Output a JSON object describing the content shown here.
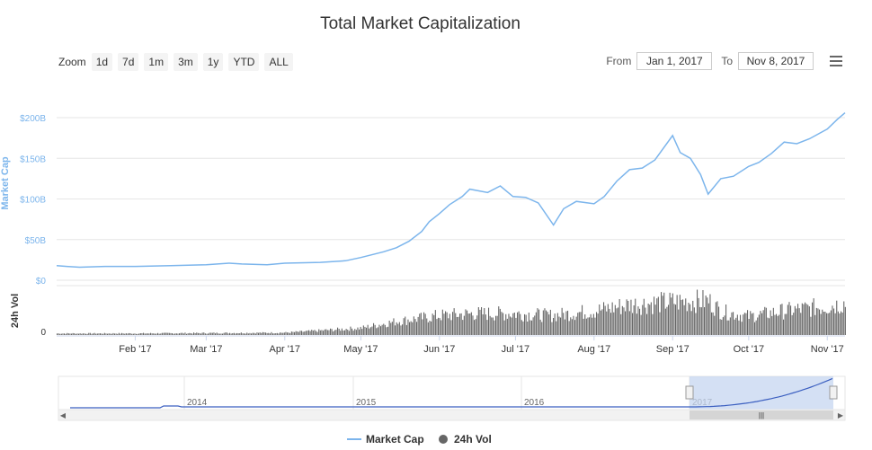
{
  "title": "Total Market Capitalization",
  "zoom": {
    "label": "Zoom",
    "buttons": [
      "1d",
      "7d",
      "1m",
      "3m",
      "1y",
      "YTD",
      "ALL"
    ]
  },
  "range": {
    "from_label": "From",
    "from_value": "Jan 1, 2017",
    "to_label": "To",
    "to_value": "Nov 8, 2017"
  },
  "menu_icon": "hamburger-menu-icon",
  "colors": {
    "market_cap": "#7cb5ec",
    "volume": "#666666",
    "navigator_line": "#3b5fc0",
    "navigator_mask": "#c5d5f0"
  },
  "chart_data": {
    "type": "line",
    "x_ticks": [
      "Feb '17",
      "Mar '17",
      "Apr '17",
      "May '17",
      "Jun '17",
      "Jul '17",
      "Aug '17",
      "Sep '17",
      "Oct '17",
      "Nov '17"
    ],
    "series": [
      {
        "name": "Market Cap",
        "axis": "Market Cap",
        "y_ticks": [
          "$0",
          "$50B",
          "$100B",
          "$150B",
          "$200B"
        ],
        "ylim": [
          0,
          200
        ],
        "unit": "B USD",
        "points": [
          [
            "2017-01-01",
            18
          ],
          [
            "2017-01-05",
            17
          ],
          [
            "2017-01-10",
            16
          ],
          [
            "2017-01-20",
            17
          ],
          [
            "2017-02-01",
            17
          ],
          [
            "2017-02-15",
            18
          ],
          [
            "2017-03-01",
            19
          ],
          [
            "2017-03-10",
            21
          ],
          [
            "2017-03-15",
            20
          ],
          [
            "2017-03-25",
            19
          ],
          [
            "2017-04-01",
            21
          ],
          [
            "2017-04-15",
            22
          ],
          [
            "2017-04-25",
            24
          ],
          [
            "2017-05-01",
            28
          ],
          [
            "2017-05-10",
            35
          ],
          [
            "2017-05-15",
            40
          ],
          [
            "2017-05-20",
            48
          ],
          [
            "2017-05-25",
            60
          ],
          [
            "2017-05-28",
            72
          ],
          [
            "2017-06-01",
            82
          ],
          [
            "2017-06-05",
            93
          ],
          [
            "2017-06-10",
            103
          ],
          [
            "2017-06-13",
            112
          ],
          [
            "2017-06-20",
            108
          ],
          [
            "2017-06-25",
            116
          ],
          [
            "2017-06-30",
            103
          ],
          [
            "2017-07-05",
            102
          ],
          [
            "2017-07-10",
            95
          ],
          [
            "2017-07-16",
            68
          ],
          [
            "2017-07-20",
            88
          ],
          [
            "2017-07-25",
            97
          ],
          [
            "2017-08-01",
            94
          ],
          [
            "2017-08-05",
            103
          ],
          [
            "2017-08-10",
            122
          ],
          [
            "2017-08-15",
            136
          ],
          [
            "2017-08-20",
            138
          ],
          [
            "2017-08-25",
            148
          ],
          [
            "2017-09-01",
            178
          ],
          [
            "2017-09-04",
            157
          ],
          [
            "2017-09-08",
            150
          ],
          [
            "2017-09-12",
            130
          ],
          [
            "2017-09-15",
            106
          ],
          [
            "2017-09-20",
            125
          ],
          [
            "2017-09-25",
            128
          ],
          [
            "2017-10-01",
            140
          ],
          [
            "2017-10-05",
            145
          ],
          [
            "2017-10-10",
            156
          ],
          [
            "2017-10-15",
            170
          ],
          [
            "2017-10-20",
            168
          ],
          [
            "2017-10-25",
            174
          ],
          [
            "2017-11-01",
            186
          ],
          [
            "2017-11-05",
            198
          ],
          [
            "2017-11-08",
            206
          ]
        ]
      },
      {
        "name": "24h Vol",
        "axis": "24h Vol",
        "y_ticks": [
          "0"
        ],
        "unit": "relative",
        "points": [
          [
            "2017-01-01",
            4
          ],
          [
            "2017-02-01",
            4
          ],
          [
            "2017-03-01",
            5
          ],
          [
            "2017-04-01",
            6
          ],
          [
            "2017-05-01",
            18
          ],
          [
            "2017-05-15",
            35
          ],
          [
            "2017-06-01",
            50
          ],
          [
            "2017-06-15",
            55
          ],
          [
            "2017-07-01",
            55
          ],
          [
            "2017-07-15",
            50
          ],
          [
            "2017-08-01",
            62
          ],
          [
            "2017-08-15",
            78
          ],
          [
            "2017-09-01",
            85
          ],
          [
            "2017-09-15",
            88
          ],
          [
            "2017-09-20",
            60
          ],
          [
            "2017-10-01",
            48
          ],
          [
            "2017-10-15",
            62
          ],
          [
            "2017-11-01",
            74
          ],
          [
            "2017-11-08",
            82
          ]
        ]
      }
    ],
    "navigator": {
      "labels": [
        "2014",
        "2015",
        "2016",
        "2017"
      ],
      "selected": [
        "2017-01-01",
        "2017-11-08"
      ]
    },
    "legend": {
      "placement": "bottom-center",
      "items": [
        "Market Cap",
        "24h Vol"
      ]
    },
    "grid": true
  }
}
